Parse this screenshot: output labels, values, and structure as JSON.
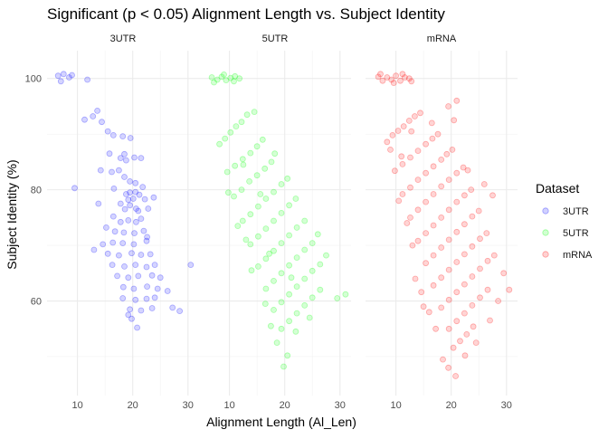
{
  "chart_data": {
    "type": "scatter",
    "title": "Significant (p < 0.05) Alignment Length vs. Subject Identity",
    "xlabel": "Alignment Length (Al_Len)",
    "ylabel": "Subject Identity (%)",
    "xlim": [
      4.5,
      32
    ],
    "ylim": [
      43,
      105
    ],
    "x_ticks": [
      10,
      20,
      30
    ],
    "y_ticks": [
      60,
      80,
      100
    ],
    "grid": true,
    "legend": {
      "title": "Dataset",
      "placement": "right",
      "entries": [
        "3UTR",
        "5UTR",
        "mRNA"
      ]
    },
    "colors": {
      "3UTR": "#0000ff",
      "5UTR": "#00ff00",
      "mRNA": "#ff0000"
    },
    "point_alpha": 0.12,
    "panels": [
      {
        "name": "3UTR",
        "points": [
          [
            6.5,
            100.5
          ],
          [
            7.5,
            100.8
          ],
          [
            7,
            99.5
          ],
          [
            8.5,
            100.2
          ],
          [
            9,
            100.6
          ],
          [
            11.8,
            99.8
          ],
          [
            9.5,
            80.3
          ],
          [
            11.3,
            92.6
          ],
          [
            12.8,
            93.2
          ],
          [
            13.6,
            94.2
          ],
          [
            14.4,
            92.2
          ],
          [
            15.5,
            90.5
          ],
          [
            16.5,
            89.8
          ],
          [
            18.2,
            89.6
          ],
          [
            19.6,
            89.3
          ],
          [
            18.5,
            86.4
          ],
          [
            17.8,
            85.7
          ],
          [
            18.8,
            85.3
          ],
          [
            20.3,
            85.8
          ],
          [
            21.5,
            85.7
          ],
          [
            16.2,
            83.2
          ],
          [
            17.5,
            83.5
          ],
          [
            18.5,
            82.3
          ],
          [
            19.5,
            81.5
          ],
          [
            20.5,
            81.2
          ],
          [
            21.8,
            80.5
          ],
          [
            19.5,
            79.5
          ],
          [
            20.5,
            79.6
          ],
          [
            18.8,
            79.2
          ],
          [
            19.2,
            78.2
          ],
          [
            20.1,
            78.4
          ],
          [
            21.2,
            79.1
          ],
          [
            22.2,
            78.3
          ],
          [
            23.8,
            78.6
          ],
          [
            17.8,
            77.5
          ],
          [
            18.6,
            76.5
          ],
          [
            19.5,
            77.2
          ],
          [
            20.6,
            76.6
          ],
          [
            22.8,
            76.6
          ],
          [
            16.5,
            75.2
          ],
          [
            17.8,
            74.2
          ],
          [
            19.2,
            74.5
          ],
          [
            20.6,
            74.2
          ],
          [
            21.5,
            74.8
          ],
          [
            15.2,
            73.2
          ],
          [
            16.8,
            72.5
          ],
          [
            18.4,
            72.3
          ],
          [
            20.3,
            72.2
          ],
          [
            22,
            72.6
          ],
          [
            14.6,
            70.2
          ],
          [
            16.4,
            70.5
          ],
          [
            18.2,
            70.4
          ],
          [
            20.2,
            70.2
          ],
          [
            22.5,
            70.8
          ],
          [
            13,
            69.2
          ],
          [
            15.5,
            68.5
          ],
          [
            17.5,
            68.2
          ],
          [
            19.8,
            68.6
          ],
          [
            21.5,
            68.3
          ],
          [
            23.2,
            68.4
          ],
          [
            16.3,
            66.5
          ],
          [
            18.5,
            66.2
          ],
          [
            20.5,
            66.5
          ],
          [
            22.5,
            66.1
          ],
          [
            24,
            66.5
          ],
          [
            17.2,
            64.5
          ],
          [
            19.2,
            64.2
          ],
          [
            21,
            64.5
          ],
          [
            23.5,
            64.6
          ],
          [
            25,
            64.2
          ],
          [
            18.3,
            62.5
          ],
          [
            20.2,
            62.2
          ],
          [
            22.6,
            62.6
          ],
          [
            24.5,
            62.2
          ],
          [
            26.3,
            61.8
          ],
          [
            18.2,
            60.5
          ],
          [
            20.5,
            60.2
          ],
          [
            22.5,
            60.4
          ],
          [
            24,
            60.6
          ],
          [
            19.5,
            58.5
          ],
          [
            21.5,
            58.3
          ],
          [
            23.5,
            58.7
          ],
          [
            27.2,
            58.8
          ],
          [
            19.2,
            57.5
          ],
          [
            19.8,
            56.8
          ],
          [
            20.8,
            55.2
          ],
          [
            30.5,
            66.5
          ],
          [
            28.5,
            58.2
          ],
          [
            14.2,
            83.5
          ],
          [
            15.8,
            86.5
          ],
          [
            22.6,
            71.5
          ],
          [
            21,
            76.2
          ],
          [
            16.6,
            80.2
          ],
          [
            13.8,
            77.5
          ]
        ]
      },
      {
        "name": "5UTR",
        "points": [
          [
            6.8,
            100.2
          ],
          [
            7.8,
            99.8
          ],
          [
            8.6,
            100.3
          ],
          [
            9.4,
            99.7
          ],
          [
            10.2,
            100.1
          ],
          [
            11,
            100.4
          ],
          [
            7.2,
            99.3
          ],
          [
            9,
            100.7
          ],
          [
            10.8,
            99.5
          ],
          [
            11.8,
            100
          ],
          [
            8.2,
            88.2
          ],
          [
            9.2,
            89.2
          ],
          [
            10.2,
            90.3
          ],
          [
            11.2,
            91.4
          ],
          [
            12.2,
            92.2
          ],
          [
            13.2,
            93.5
          ],
          [
            14.5,
            94
          ],
          [
            9.6,
            83.2
          ],
          [
            11,
            84.3
          ],
          [
            12.4,
            85.5
          ],
          [
            13.8,
            86.6
          ],
          [
            15,
            87.8
          ],
          [
            16,
            89
          ],
          [
            10.8,
            78.8
          ],
          [
            12.2,
            80
          ],
          [
            13.6,
            81.5
          ],
          [
            15,
            82.6
          ],
          [
            16.4,
            83.8
          ],
          [
            17.6,
            85
          ],
          [
            18.2,
            86.5
          ],
          [
            12.4,
            74.4
          ],
          [
            13.8,
            75.6
          ],
          [
            15.2,
            77
          ],
          [
            16.6,
            78.4
          ],
          [
            18,
            79.6
          ],
          [
            19.4,
            81
          ],
          [
            20.5,
            82
          ],
          [
            13.8,
            70.2
          ],
          [
            15.2,
            71.6
          ],
          [
            16.6,
            73
          ],
          [
            18,
            74.4
          ],
          [
            19.4,
            75.8
          ],
          [
            20.8,
            77.2
          ],
          [
            22,
            78.4
          ],
          [
            15.2,
            66.2
          ],
          [
            16.6,
            67.6
          ],
          [
            18,
            69
          ],
          [
            19.4,
            70.4
          ],
          [
            20.8,
            71.8
          ],
          [
            22.2,
            73.2
          ],
          [
            23.6,
            74.4
          ],
          [
            16.6,
            62.2
          ],
          [
            18,
            63.6
          ],
          [
            19.4,
            65
          ],
          [
            20.8,
            66.4
          ],
          [
            22.2,
            67.8
          ],
          [
            23.6,
            69.2
          ],
          [
            25,
            70.4
          ],
          [
            18,
            58.4
          ],
          [
            19.4,
            59.8
          ],
          [
            20.8,
            61.2
          ],
          [
            22.2,
            62.6
          ],
          [
            23.6,
            64
          ],
          [
            25,
            65.4
          ],
          [
            26.4,
            66.6
          ],
          [
            19.4,
            55
          ],
          [
            20.8,
            56.4
          ],
          [
            22.2,
            57.8
          ],
          [
            23.6,
            59.2
          ],
          [
            25,
            60.6
          ],
          [
            26.4,
            62
          ],
          [
            18.6,
            52.5
          ],
          [
            20.5,
            50.2
          ],
          [
            19.8,
            48.2
          ],
          [
            17.5,
            55.5
          ],
          [
            27.5,
            68.2
          ],
          [
            26,
            72
          ],
          [
            29.5,
            60.5
          ],
          [
            31,
            61.2
          ],
          [
            24.5,
            57
          ],
          [
            13,
            71
          ],
          [
            11.5,
            73.5
          ],
          [
            14,
            65.5
          ],
          [
            16.5,
            59.5
          ],
          [
            22,
            54.5
          ],
          [
            9.8,
            79.5
          ],
          [
            12.5,
            84.5
          ],
          [
            15.6,
            79.2
          ],
          [
            17.2,
            68.5
          ],
          [
            21.2,
            64.2
          ]
        ]
      },
      {
        "name": "mRNA",
        "points": [
          [
            6.8,
            100.3
          ],
          [
            7.6,
            99.6
          ],
          [
            8.4,
            100.2
          ],
          [
            9.2,
            99.8
          ],
          [
            10,
            100.5
          ],
          [
            10.8,
            99.6
          ],
          [
            11.6,
            100.2
          ],
          [
            12.4,
            100
          ],
          [
            7.2,
            100.8
          ],
          [
            9.6,
            99.2
          ],
          [
            11.2,
            100.8
          ],
          [
            12.8,
            99.5
          ],
          [
            8.4,
            88.6
          ],
          [
            9.4,
            89.8
          ],
          [
            10.4,
            90.6
          ],
          [
            11.4,
            91.4
          ],
          [
            12.4,
            92.4
          ],
          [
            13.4,
            93.2
          ],
          [
            14.4,
            93.8
          ],
          [
            9,
            87.2
          ],
          [
            12.8,
            90.5
          ],
          [
            9.8,
            83.4
          ],
          [
            11.2,
            84.6
          ],
          [
            12.6,
            85.8
          ],
          [
            14,
            87
          ],
          [
            15.4,
            88.2
          ],
          [
            16.6,
            89.2
          ],
          [
            17.6,
            90
          ],
          [
            11.2,
            79.2
          ],
          [
            12.6,
            80.4
          ],
          [
            14,
            81.8
          ],
          [
            15.4,
            83
          ],
          [
            16.8,
            84.2
          ],
          [
            18.2,
            85.4
          ],
          [
            19.2,
            86.4
          ],
          [
            20.2,
            87.2
          ],
          [
            12.6,
            75
          ],
          [
            14,
            76.4
          ],
          [
            15.4,
            77.8
          ],
          [
            16.8,
            79.2
          ],
          [
            18.2,
            80.6
          ],
          [
            19.6,
            81.8
          ],
          [
            21,
            83
          ],
          [
            22.2,
            84
          ],
          [
            14,
            70.8
          ],
          [
            15.4,
            72.2
          ],
          [
            16.8,
            73.6
          ],
          [
            18.2,
            75
          ],
          [
            19.6,
            76.4
          ],
          [
            21,
            77.8
          ],
          [
            22.4,
            79
          ],
          [
            23.6,
            80
          ],
          [
            15.4,
            66.8
          ],
          [
            16.8,
            68.2
          ],
          [
            18.2,
            69.6
          ],
          [
            19.6,
            71
          ],
          [
            21,
            72.4
          ],
          [
            22.4,
            73.8
          ],
          [
            23.8,
            75.2
          ],
          [
            25,
            76.2
          ],
          [
            16.8,
            62.8
          ],
          [
            18.2,
            64.2
          ],
          [
            19.6,
            65.6
          ],
          [
            21,
            67
          ],
          [
            22.4,
            68.4
          ],
          [
            23.8,
            69.8
          ],
          [
            25.2,
            71.2
          ],
          [
            26.4,
            72.2
          ],
          [
            18.2,
            58.8
          ],
          [
            19.6,
            60.2
          ],
          [
            21,
            61.6
          ],
          [
            22.4,
            63
          ],
          [
            23.8,
            64.4
          ],
          [
            25.2,
            65.8
          ],
          [
            26.6,
            67.2
          ],
          [
            27.8,
            68.2
          ],
          [
            19.6,
            55
          ],
          [
            21,
            56.4
          ],
          [
            22.4,
            57.8
          ],
          [
            23.8,
            59.2
          ],
          [
            25.2,
            60.6
          ],
          [
            26.6,
            62
          ],
          [
            20.4,
            51.6
          ],
          [
            21.6,
            52.8
          ],
          [
            22.8,
            54
          ],
          [
            24,
            55.4
          ],
          [
            17.2,
            55
          ],
          [
            16,
            58
          ],
          [
            14.6,
            61.6
          ],
          [
            19.5,
            48
          ],
          [
            20.8,
            46.5
          ],
          [
            18.5,
            49.5
          ],
          [
            22.5,
            50.2
          ],
          [
            24.5,
            52.5
          ],
          [
            27,
            56.5
          ],
          [
            28.5,
            60
          ],
          [
            30.5,
            62
          ],
          [
            29.5,
            65
          ],
          [
            23,
            83.5
          ],
          [
            20.5,
            92.5
          ],
          [
            19.5,
            95
          ],
          [
            21,
            96
          ],
          [
            16.5,
            92
          ],
          [
            13,
            70
          ],
          [
            12,
            74
          ],
          [
            10.5,
            78
          ],
          [
            11,
            86
          ],
          [
            27.5,
            79
          ],
          [
            26,
            81
          ],
          [
            15,
            59
          ],
          [
            13.5,
            64
          ]
        ]
      }
    ]
  }
}
